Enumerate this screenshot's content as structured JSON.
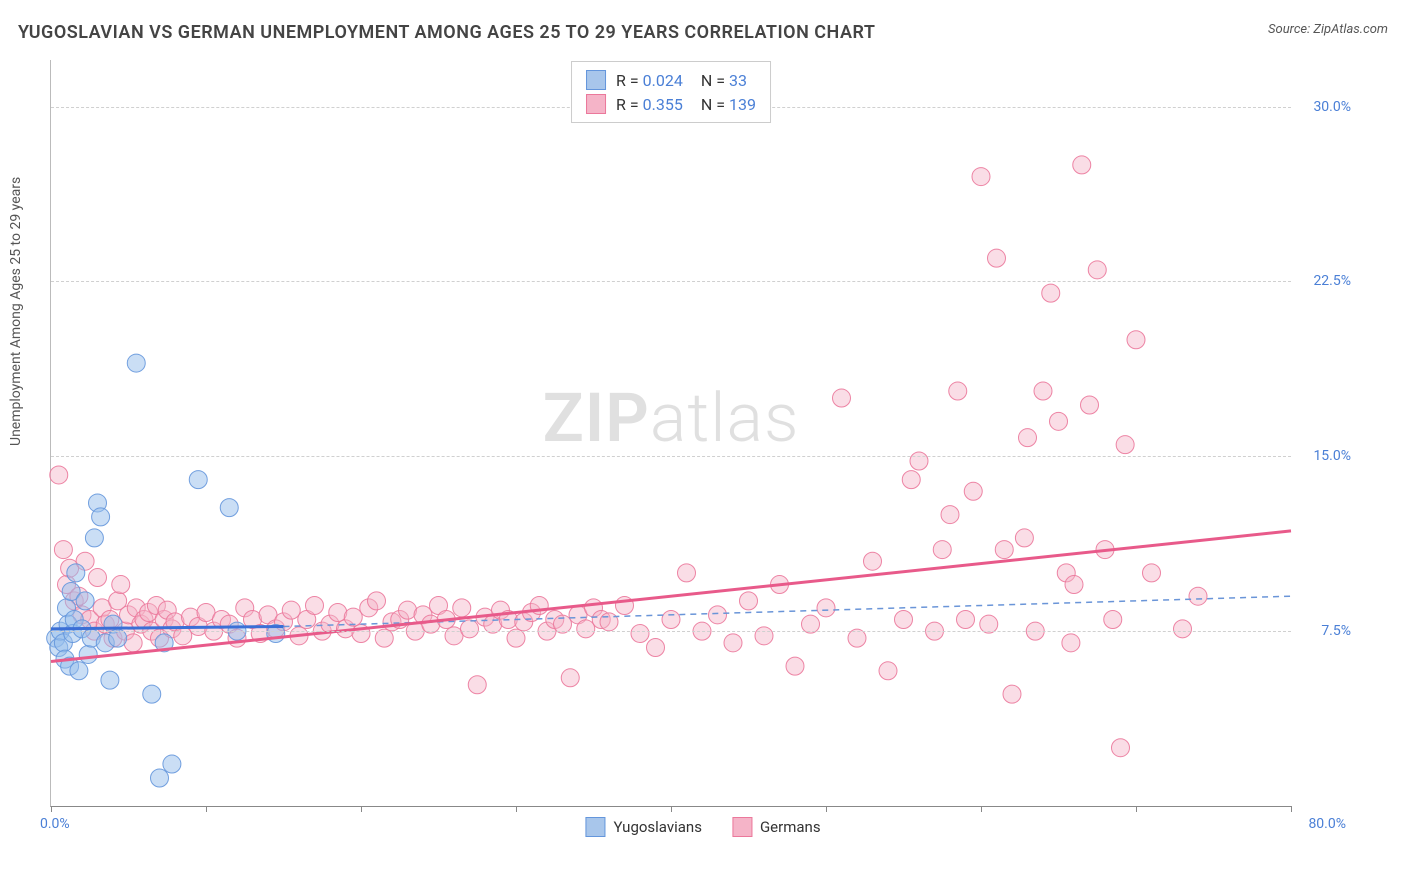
{
  "title": "YUGOSLAVIAN VS GERMAN UNEMPLOYMENT AMONG AGES 25 TO 29 YEARS CORRELATION CHART",
  "source_label": "Source: ZipAtlas.com",
  "watermark_zip": "ZIP",
  "watermark_atlas": "atlas",
  "y_axis_label": "Unemployment Among Ages 25 to 29 years",
  "chart": {
    "type": "scatter",
    "x_domain": [
      0,
      80
    ],
    "y_domain": [
      0,
      32
    ],
    "x_min_label": "0.0%",
    "x_max_label": "80.0%",
    "y_ticks": [
      {
        "v": 7.5,
        "label": "7.5%"
      },
      {
        "v": 15.0,
        "label": "15.0%"
      },
      {
        "v": 22.5,
        "label": "22.5%"
      },
      {
        "v": 30.0,
        "label": "30.0%"
      }
    ],
    "x_tick_positions": [
      0,
      10,
      20,
      30,
      40,
      50,
      60,
      70,
      80
    ],
    "marker_radius": 9,
    "background_color": "#ffffff",
    "grid_color": "#d0d0d0",
    "series": [
      {
        "key": "yugoslavians",
        "name": "Yugoslavians",
        "fill_color": "#a8c6eb",
        "stroke_color": "#6496dc",
        "r_value": "0.024",
        "n_value": "33",
        "trend_solid": {
          "x1": 0,
          "y1": 7.6,
          "x2": 15,
          "y2": 7.7
        },
        "trend_dashed": {
          "x1": 15,
          "y1": 7.7,
          "x2": 80,
          "y2": 9.0
        },
        "points": [
          [
            0.3,
            7.2
          ],
          [
            0.5,
            6.8
          ],
          [
            0.6,
            7.5
          ],
          [
            0.8,
            7.0
          ],
          [
            0.9,
            6.3
          ],
          [
            1.0,
            8.5
          ],
          [
            1.1,
            7.8
          ],
          [
            1.2,
            6.0
          ],
          [
            1.3,
            9.2
          ],
          [
            1.4,
            7.4
          ],
          [
            1.5,
            8.0
          ],
          [
            1.6,
            10.0
          ],
          [
            1.8,
            5.8
          ],
          [
            2.0,
            7.6
          ],
          [
            2.2,
            8.8
          ],
          [
            2.4,
            6.5
          ],
          [
            2.6,
            7.2
          ],
          [
            2.8,
            11.5
          ],
          [
            3.0,
            13.0
          ],
          [
            3.2,
            12.4
          ],
          [
            3.5,
            7.0
          ],
          [
            3.8,
            5.4
          ],
          [
            4.0,
            7.8
          ],
          [
            4.3,
            7.2
          ],
          [
            5.5,
            19.0
          ],
          [
            6.5,
            4.8
          ],
          [
            7.0,
            1.2
          ],
          [
            7.3,
            7.0
          ],
          [
            7.8,
            1.8
          ],
          [
            9.5,
            14.0
          ],
          [
            11.5,
            12.8
          ],
          [
            12.0,
            7.5
          ],
          [
            14.5,
            7.4
          ]
        ]
      },
      {
        "key": "germans",
        "name": "Germans",
        "fill_color": "#f5b4c8",
        "stroke_color": "#eb789b",
        "r_value": "0.355",
        "n_value": "139",
        "trend_solid": {
          "x1": 0,
          "y1": 6.2,
          "x2": 80,
          "y2": 11.8
        },
        "points": [
          [
            0.5,
            14.2
          ],
          [
            0.8,
            11.0
          ],
          [
            1.0,
            9.5
          ],
          [
            1.2,
            10.2
          ],
          [
            1.5,
            8.8
          ],
          [
            1.8,
            9.0
          ],
          [
            2.0,
            8.2
          ],
          [
            2.2,
            10.5
          ],
          [
            2.5,
            8.0
          ],
          [
            2.8,
            7.5
          ],
          [
            3.0,
            9.8
          ],
          [
            3.3,
            8.5
          ],
          [
            3.5,
            7.8
          ],
          [
            3.8,
            8.0
          ],
          [
            4.0,
            7.2
          ],
          [
            4.3,
            8.8
          ],
          [
            4.5,
            9.5
          ],
          [
            4.8,
            7.5
          ],
          [
            5.0,
            8.2
          ],
          [
            5.3,
            7.0
          ],
          [
            5.5,
            8.5
          ],
          [
            5.8,
            7.8
          ],
          [
            6.0,
            8.0
          ],
          [
            6.3,
            8.3
          ],
          [
            6.5,
            7.5
          ],
          [
            6.8,
            8.6
          ],
          [
            7.0,
            7.2
          ],
          [
            7.3,
            8.0
          ],
          [
            7.5,
            8.4
          ],
          [
            7.8,
            7.6
          ],
          [
            8.0,
            7.9
          ],
          [
            8.5,
            7.3
          ],
          [
            9.0,
            8.1
          ],
          [
            9.5,
            7.7
          ],
          [
            10.0,
            8.3
          ],
          [
            10.5,
            7.5
          ],
          [
            11.0,
            8.0
          ],
          [
            11.5,
            7.8
          ],
          [
            12.0,
            7.2
          ],
          [
            12.5,
            8.5
          ],
          [
            13.0,
            8.0
          ],
          [
            13.5,
            7.4
          ],
          [
            14.0,
            8.2
          ],
          [
            14.5,
            7.6
          ],
          [
            15.0,
            7.9
          ],
          [
            15.5,
            8.4
          ],
          [
            16.0,
            7.3
          ],
          [
            16.5,
            8.0
          ],
          [
            17.0,
            8.6
          ],
          [
            17.5,
            7.5
          ],
          [
            18.0,
            7.8
          ],
          [
            18.5,
            8.3
          ],
          [
            19.0,
            7.6
          ],
          [
            19.5,
            8.1
          ],
          [
            20.0,
            7.4
          ],
          [
            20.5,
            8.5
          ],
          [
            21.0,
            8.8
          ],
          [
            21.5,
            7.2
          ],
          [
            22.0,
            7.9
          ],
          [
            22.5,
            8.0
          ],
          [
            23.0,
            8.4
          ],
          [
            23.5,
            7.5
          ],
          [
            24.0,
            8.2
          ],
          [
            24.5,
            7.8
          ],
          [
            25.0,
            8.6
          ],
          [
            25.5,
            8.0
          ],
          [
            26.0,
            7.3
          ],
          [
            26.5,
            8.5
          ],
          [
            27.0,
            7.6
          ],
          [
            27.5,
            5.2
          ],
          [
            28.0,
            8.1
          ],
          [
            28.5,
            7.8
          ],
          [
            29.0,
            8.4
          ],
          [
            29.5,
            8.0
          ],
          [
            30.0,
            7.2
          ],
          [
            30.5,
            7.9
          ],
          [
            31.0,
            8.3
          ],
          [
            31.5,
            8.6
          ],
          [
            32.0,
            7.5
          ],
          [
            32.5,
            8.0
          ],
          [
            33.0,
            7.8
          ],
          [
            33.5,
            5.5
          ],
          [
            34.0,
            8.2
          ],
          [
            34.5,
            7.6
          ],
          [
            35.0,
            8.5
          ],
          [
            35.5,
            8.0
          ],
          [
            36.0,
            7.9
          ],
          [
            37.0,
            8.6
          ],
          [
            38.0,
            7.4
          ],
          [
            39.0,
            6.8
          ],
          [
            40.0,
            8.0
          ],
          [
            41.0,
            10.0
          ],
          [
            42.0,
            7.5
          ],
          [
            43.0,
            8.2
          ],
          [
            44.0,
            7.0
          ],
          [
            45.0,
            8.8
          ],
          [
            46.0,
            7.3
          ],
          [
            47.0,
            9.5
          ],
          [
            48.0,
            6.0
          ],
          [
            49.0,
            7.8
          ],
          [
            50.0,
            8.5
          ],
          [
            51.0,
            17.5
          ],
          [
            52.0,
            7.2
          ],
          [
            53.0,
            10.5
          ],
          [
            54.0,
            5.8
          ],
          [
            55.0,
            8.0
          ],
          [
            55.5,
            14.0
          ],
          [
            56.0,
            14.8
          ],
          [
            57.0,
            7.5
          ],
          [
            57.5,
            11.0
          ],
          [
            58.0,
            12.5
          ],
          [
            58.5,
            17.8
          ],
          [
            59.0,
            8.0
          ],
          [
            59.5,
            13.5
          ],
          [
            60.0,
            27.0
          ],
          [
            60.5,
            7.8
          ],
          [
            61.0,
            23.5
          ],
          [
            61.5,
            11.0
          ],
          [
            62.0,
            4.8
          ],
          [
            62.8,
            11.5
          ],
          [
            63.0,
            15.8
          ],
          [
            63.5,
            7.5
          ],
          [
            64.0,
            17.8
          ],
          [
            64.5,
            22.0
          ],
          [
            65.0,
            16.5
          ],
          [
            65.5,
            10.0
          ],
          [
            65.8,
            7.0
          ],
          [
            66.0,
            9.5
          ],
          [
            66.5,
            27.5
          ],
          [
            67.0,
            17.2
          ],
          [
            67.5,
            23.0
          ],
          [
            68.0,
            11.0
          ],
          [
            68.5,
            8.0
          ],
          [
            69.0,
            2.5
          ],
          [
            69.3,
            15.5
          ],
          [
            70.0,
            20.0
          ],
          [
            71.0,
            10.0
          ],
          [
            73.0,
            7.6
          ],
          [
            74.0,
            9.0
          ]
        ]
      }
    ]
  },
  "legend_bottom": [
    {
      "key": "yugoslavians",
      "label": "Yugoslavians",
      "fill": "#a8c6eb",
      "stroke": "#6496dc"
    },
    {
      "key": "germans",
      "label": "Germans",
      "fill": "#f5b4c8",
      "stroke": "#eb789b"
    }
  ]
}
